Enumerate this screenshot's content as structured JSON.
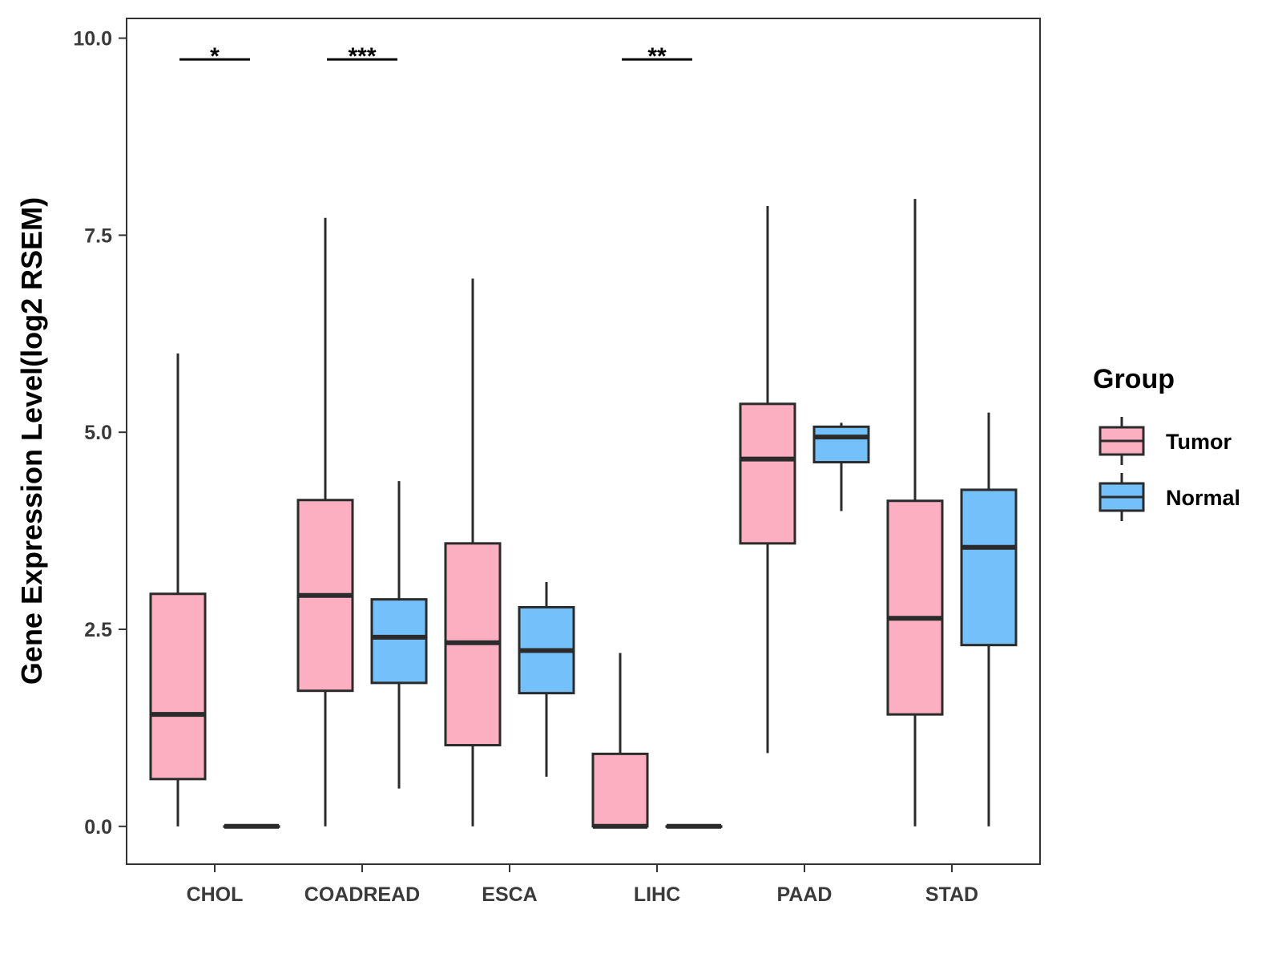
{
  "chart_data": {
    "type": "boxplot",
    "title": "",
    "xlabel": "",
    "ylabel": "Gene Expression Level(log2 RSEM)",
    "ylim": [
      -0.48,
      10.25
    ],
    "yticks": [
      0.0,
      2.5,
      5.0,
      7.5,
      10.0
    ],
    "ytick_labels": [
      "0.0",
      "2.5",
      "5.0",
      "7.5",
      "10.0"
    ],
    "grid": false,
    "categories": [
      "CHOL",
      "COADREAD",
      "ESCA",
      "LIHC",
      "PAAD",
      "STAD"
    ],
    "series": [
      {
        "name": "Tumor",
        "color": "#fbafc0",
        "boxes": [
          {
            "category": "CHOL",
            "min": 0.0,
            "q1": 0.6,
            "median": 1.42,
            "q3": 2.95,
            "max": 6.0
          },
          {
            "category": "COADREAD",
            "min": 0.0,
            "q1": 1.72,
            "median": 2.93,
            "q3": 4.14,
            "max": 7.72
          },
          {
            "category": "ESCA",
            "min": 0.0,
            "q1": 1.03,
            "median": 2.33,
            "q3": 3.59,
            "max": 6.95
          },
          {
            "category": "LIHC",
            "min": 0.0,
            "q1": 0.0,
            "median": 0.0,
            "q3": 0.92,
            "max": 2.2
          },
          {
            "category": "PAAD",
            "min": 0.93,
            "q1": 3.59,
            "median": 4.66,
            "q3": 5.36,
            "max": 7.87
          },
          {
            "category": "STAD",
            "min": 0.0,
            "q1": 1.42,
            "median": 2.64,
            "q3": 4.13,
            "max": 7.96
          }
        ]
      },
      {
        "name": "Normal",
        "color": "#74c0fa",
        "boxes": [
          {
            "category": "CHOL",
            "min": 0.0,
            "q1": 0.0,
            "median": 0.0,
            "q3": 0.0,
            "max": 0.0
          },
          {
            "category": "COADREAD",
            "min": 0.48,
            "q1": 1.82,
            "median": 2.4,
            "q3": 2.88,
            "max": 4.38
          },
          {
            "category": "ESCA",
            "min": 0.63,
            "q1": 1.69,
            "median": 2.23,
            "q3": 2.78,
            "max": 3.1
          },
          {
            "category": "LIHC",
            "min": 0.0,
            "q1": 0.0,
            "median": 0.0,
            "q3": 0.0,
            "max": 0.0
          },
          {
            "category": "PAAD",
            "min": 4.0,
            "q1": 4.62,
            "median": 4.94,
            "q3": 5.07,
            "max": 5.12
          },
          {
            "category": "STAD",
            "min": 0.0,
            "q1": 2.3,
            "median": 3.54,
            "q3": 4.27,
            "max": 5.25
          }
        ]
      }
    ],
    "significance": [
      {
        "category": "CHOL",
        "label": "*",
        "y": 9.73
      },
      {
        "category": "COADREAD",
        "label": "***",
        "y": 9.73
      },
      {
        "category": "LIHC",
        "label": "**",
        "y": 9.73
      }
    ],
    "legend": {
      "title": "Group",
      "position": "right",
      "entries": [
        {
          "label": "Tumor",
          "color": "#fbafc0"
        },
        {
          "label": "Normal",
          "color": "#74c0fa"
        }
      ]
    }
  }
}
